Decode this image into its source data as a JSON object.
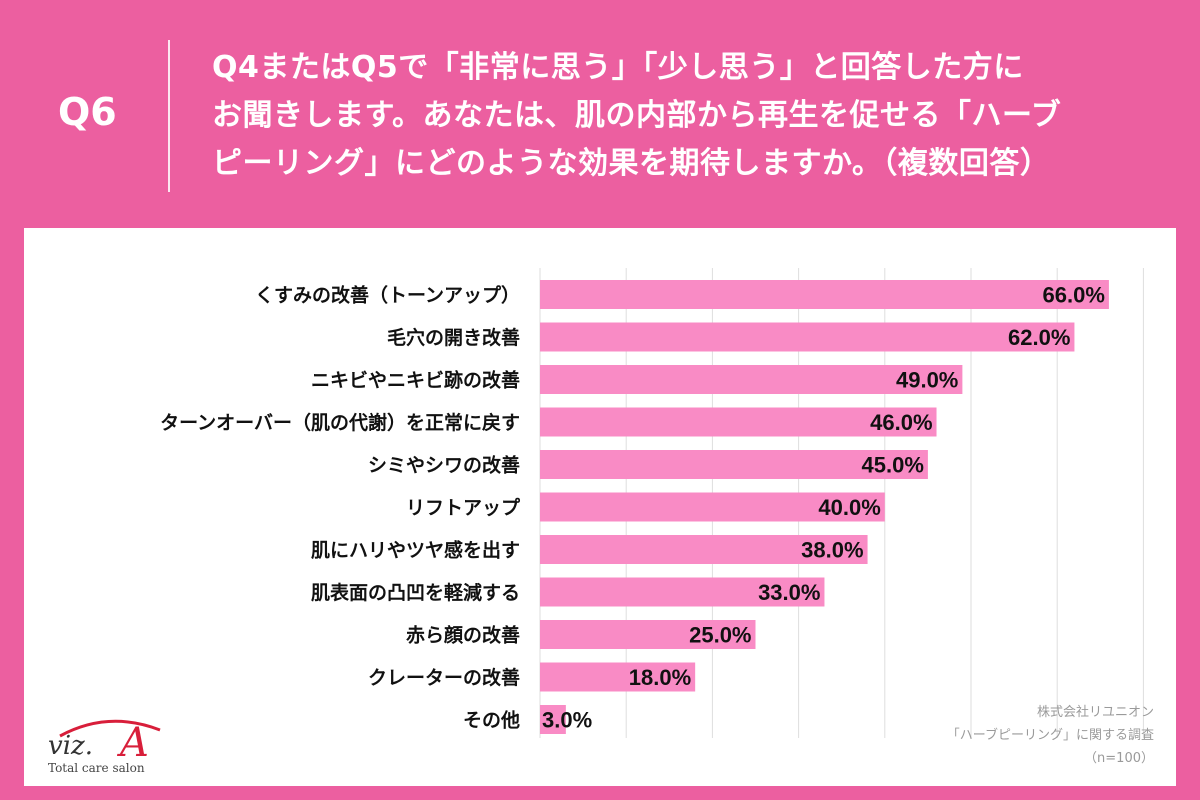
{
  "header": {
    "question_number": "Q6",
    "question_line1": "Q4またはQ5で「非常に思う」「少し思う」と回答した方に",
    "question_line2": "お聞きします。あなたは、肌の内部から再生を促せる「ハーブ",
    "question_line3": "ピーリング」にどのような効果を期待しますか。（複数回答）"
  },
  "colors": {
    "background": "#ec5fa0",
    "bar": "#f98bc5",
    "panel": "#ffffff",
    "text": "#111111"
  },
  "chart_data": {
    "type": "bar",
    "orientation": "horizontal",
    "categories": [
      "くすみの改善（トーンアップ）",
      "毛穴の開き改善",
      "ニキビやニキビ跡の改善",
      "ターンオーバー（肌の代謝）を正常に戻す",
      "シミやシワの改善",
      "リフトアップ",
      "肌にハリやツヤ感を出す",
      "肌表面の凸凹を軽減する",
      "赤ら顔の改善",
      "クレーターの改善",
      "その他"
    ],
    "values": [
      66.0,
      62.0,
      49.0,
      46.0,
      45.0,
      40.0,
      38.0,
      33.0,
      25.0,
      18.0,
      3.0
    ],
    "value_labels": [
      "66.0%",
      "62.0%",
      "49.0%",
      "46.0%",
      "45.0%",
      "40.0%",
      "38.0%",
      "33.0%",
      "25.0%",
      "18.0%",
      "3.0%"
    ],
    "xlim": [
      0,
      70
    ],
    "grid": true
  },
  "credit": {
    "company": "株式会社リユニオン",
    "survey": "「ハーブピーリング」に関する調査",
    "sample": "（n=100）"
  },
  "logo": {
    "brand": "viz.A",
    "tagline": "Total care salon"
  }
}
